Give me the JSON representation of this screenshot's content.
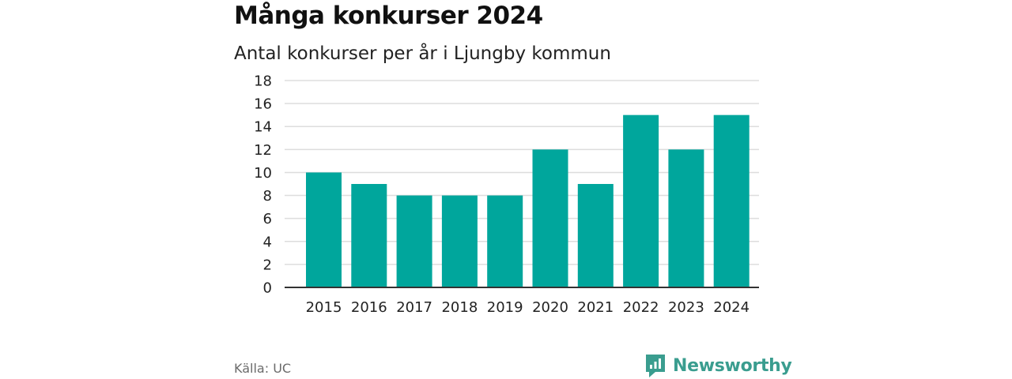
{
  "header": {
    "title": "Många konkurser 2024",
    "subtitle": "Antal konkurser per år i Ljungby kommun"
  },
  "footer": {
    "source": "Källa: UC",
    "brand": "Newsworthy"
  },
  "colors": {
    "bar": "#00a69c",
    "brand": "#3a9d8f",
    "grid": "#dddddd",
    "axis": "#333333"
  },
  "chart_data": {
    "type": "bar",
    "categories": [
      "2015",
      "2016",
      "2017",
      "2018",
      "2019",
      "2020",
      "2021",
      "2022",
      "2023",
      "2024"
    ],
    "values": [
      10,
      9,
      8,
      8,
      8,
      12,
      9,
      15,
      12,
      15
    ],
    "title": "Många konkurser 2024",
    "subtitle": "Antal konkurser per år i Ljungby kommun",
    "xlabel": "",
    "ylabel": "",
    "ylim": [
      0,
      18
    ],
    "yticks": [
      0,
      2,
      4,
      6,
      8,
      10,
      12,
      14,
      16,
      18
    ],
    "grid": true,
    "legend": "none"
  }
}
